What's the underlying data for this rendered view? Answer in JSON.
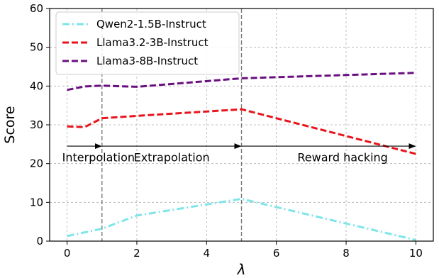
{
  "chart_data": {
    "type": "line",
    "title": "",
    "xlabel": "λ",
    "ylabel": "Score",
    "xlim": [
      -0.5,
      10.5
    ],
    "ylim": [
      0,
      60
    ],
    "xticks": [
      0,
      2,
      4,
      6,
      8,
      10
    ],
    "yticks": [
      0,
      10,
      20,
      30,
      40,
      50,
      60
    ],
    "grid": true,
    "legend_position": "top-left",
    "series": [
      {
        "name": "Qwen2-1.5B-Instruct",
        "color": "#7fe5e8",
        "dash": "dashdot",
        "x": [
          0,
          1,
          2,
          5,
          10
        ],
        "y": [
          1.3,
          3.2,
          6.6,
          10.9,
          0.3
        ]
      },
      {
        "name": "Llama3.2-3B-Instruct",
        "color": "#e8141c",
        "dash": "dashed",
        "x": [
          0,
          0.5,
          1,
          2,
          5,
          10
        ],
        "y": [
          29.6,
          29.4,
          31.7,
          32.3,
          34.0,
          22.5
        ]
      },
      {
        "name": "Llama3-8B-Instruct",
        "color": "#6a0f7f",
        "dash": "dashed",
        "x": [
          0,
          0.5,
          1,
          2,
          5,
          10
        ],
        "y": [
          39.0,
          39.9,
          40.1,
          39.8,
          42.0,
          43.4
        ]
      }
    ],
    "vlines": [
      1,
      5
    ],
    "annotations": [
      {
        "text": "Interpolation",
        "x": 0.9,
        "y": 20.6
      },
      {
        "text": "Extrapolation",
        "x": 3.0,
        "y": 20.6
      },
      {
        "text": "Reward hacking",
        "x": 7.9,
        "y": 20.6
      }
    ],
    "arrows": [
      {
        "from": [
          0,
          24.5
        ],
        "to": [
          1,
          24.5
        ]
      },
      {
        "from": [
          1,
          24.5
        ],
        "to": [
          5,
          24.5
        ]
      },
      {
        "from": [
          5,
          24.5
        ],
        "to": [
          10,
          24.5
        ]
      }
    ]
  }
}
